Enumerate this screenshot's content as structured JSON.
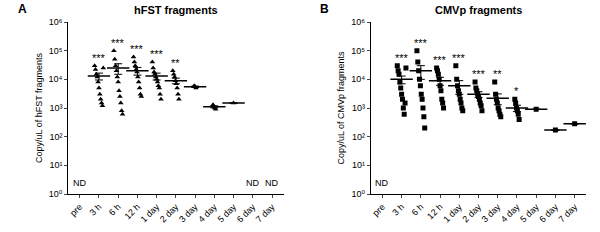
{
  "chart_data": [
    {
      "type": "scatter",
      "label": "A",
      "title": "hFST fragments",
      "y_label": "Copy/uL of hFST fragments",
      "log": "y",
      "marker": "triangle-up",
      "color": "#000000",
      "categories": [
        "pre",
        "3 h",
        "6 h",
        "12 h",
        "1 day",
        "2 day",
        "3 day",
        "4 day",
        "5 day",
        "6 day",
        "7 day"
      ],
      "values": [
        [],
        [
          30000,
          22000,
          15000,
          12000,
          8000,
          5000,
          3000,
          2000,
          1500,
          1200,
          25000
        ],
        [
          100000,
          50000,
          30000,
          20000,
          12000,
          8000,
          4000,
          2500,
          1500,
          800,
          600
        ],
        [
          60000,
          40000,
          30000,
          22000,
          18000,
          12000,
          8000,
          5000,
          3000,
          2500
        ],
        [
          40000,
          25000,
          18000,
          15000,
          12000,
          10000,
          8000,
          6000,
          5000,
          3000,
          2000
        ],
        [
          20000,
          15000,
          12000,
          9000,
          7000,
          5000,
          3000,
          2000
        ],
        [
          6000,
          5500,
          5000
        ],
        [
          1300,
          1100,
          1000,
          900
        ],
        [
          1500
        ],
        [],
        []
      ],
      "means": [
        null,
        13000,
        25000,
        20000,
        13000,
        9000,
        5500,
        1100,
        1500,
        null,
        null
      ],
      "errors": [
        null,
        3500,
        10000,
        6000,
        3500,
        2000,
        300,
        90,
        null,
        null,
        null
      ],
      "annotations": [
        {
          "category": "pre",
          "text": "ND"
        },
        {
          "category": "3 h",
          "text": "***"
        },
        {
          "category": "6 h",
          "text": "***"
        },
        {
          "category": "12 h",
          "text": "***"
        },
        {
          "category": "1 day",
          "text": "***"
        },
        {
          "category": "2 day",
          "text": "**"
        },
        {
          "category": "6 day",
          "text": "ND"
        },
        {
          "category": "7 day",
          "text": "ND"
        }
      ],
      "ylim": [
        1,
        1000000
      ],
      "yticks": [
        {
          "value": 1,
          "label": "10⁰"
        },
        {
          "value": 10,
          "label": "10¹"
        },
        {
          "value": 100,
          "label": "10²"
        },
        {
          "value": 1000,
          "label": "10³"
        },
        {
          "value": 10000,
          "label": "10⁴"
        },
        {
          "value": 100000,
          "label": "10⁵"
        },
        {
          "value": 1000000,
          "label": "10⁶"
        }
      ]
    },
    {
      "type": "scatter",
      "label": "B",
      "title": "CMVp fragments",
      "y_label": "Copy/uL of CMVp fragments",
      "log": "y",
      "marker": "square",
      "color": "#000000",
      "categories": [
        "pre",
        "3 h",
        "6 h",
        "12 h",
        "1 day",
        "2 day",
        "3 day",
        "4 day",
        "5 day",
        "6 day",
        "7 day"
      ],
      "values": [
        [],
        [
          30000,
          20000,
          15000,
          8000,
          5000,
          3000,
          2000,
          1000,
          600,
          1500,
          25000
        ],
        [
          100000,
          40000,
          20000,
          10000,
          6000,
          3000,
          2000,
          1000,
          500,
          200
        ],
        [
          25000,
          20000,
          15000,
          10000,
          6000,
          4000,
          2000,
          1500,
          1000
        ],
        [
          30000,
          10000,
          6000,
          4000,
          3000,
          2000,
          1500,
          1000,
          800
        ],
        [
          8000,
          5000,
          4000,
          3000,
          2500,
          2000,
          1500,
          1200,
          800
        ],
        [
          8000,
          3000,
          2000,
          1500,
          1000,
          800,
          600,
          500
        ],
        [
          2000,
          1500,
          1000,
          800,
          600,
          400
        ],
        [
          900
        ],
        [
          170
        ],
        [
          280
        ]
      ],
      "means": [
        null,
        10000,
        20000,
        9000,
        6000,
        3000,
        2200,
        1000,
        900,
        170,
        280
      ],
      "errors": [
        null,
        3000,
        10000,
        2800,
        3000,
        700,
        900,
        250,
        null,
        null,
        null
      ],
      "annotations": [
        {
          "category": "pre",
          "text": "ND"
        },
        {
          "category": "3 h",
          "text": "***"
        },
        {
          "category": "6 h",
          "text": "***"
        },
        {
          "category": "12 h",
          "text": "***"
        },
        {
          "category": "1 day",
          "text": "***"
        },
        {
          "category": "2 day",
          "text": "***"
        },
        {
          "category": "3 day",
          "text": "**"
        },
        {
          "category": "4 day",
          "text": "*"
        }
      ],
      "ylim": [
        1,
        1000000
      ],
      "yticks": [
        {
          "value": 1,
          "label": "10⁰"
        },
        {
          "value": 10,
          "label": "10¹"
        },
        {
          "value": 100,
          "label": "10²"
        },
        {
          "value": 1000,
          "label": "10³"
        },
        {
          "value": 10000,
          "label": "10⁴"
        },
        {
          "value": 100000,
          "label": "10⁵"
        },
        {
          "value": 1000000,
          "label": "10⁶"
        }
      ]
    }
  ]
}
